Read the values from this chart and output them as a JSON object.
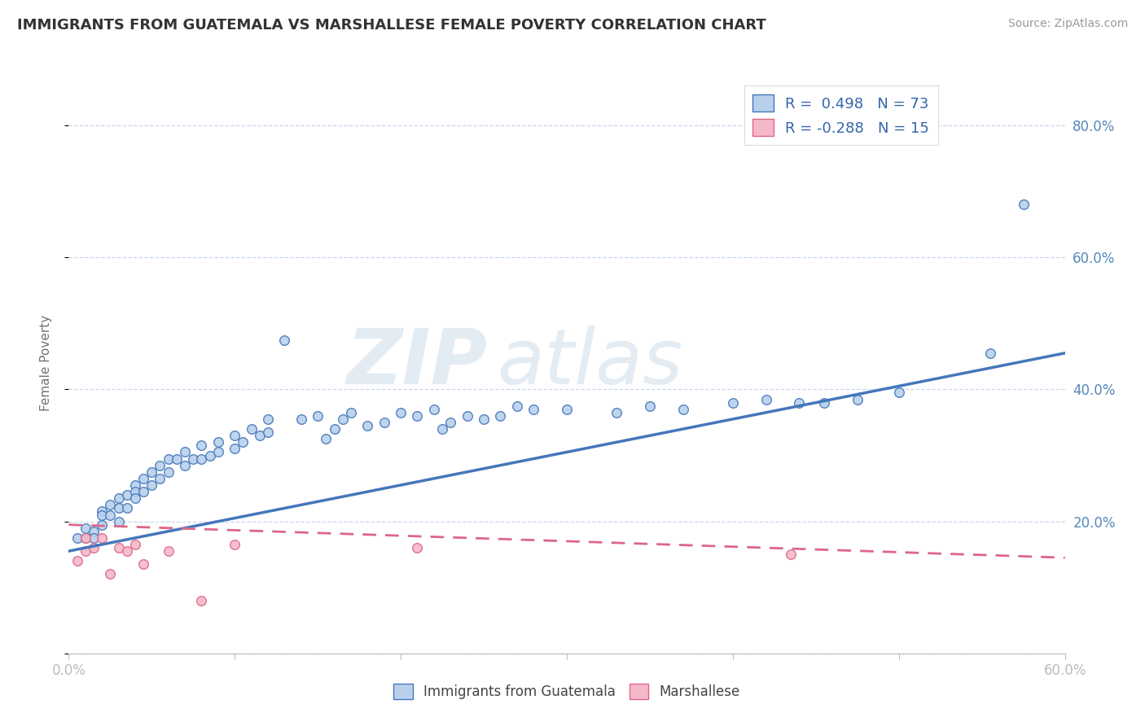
{
  "title": "IMMIGRANTS FROM GUATEMALA VS MARSHALLESE FEMALE POVERTY CORRELATION CHART",
  "source": "Source: ZipAtlas.com",
  "ylabel": "Female Poverty",
  "xlim": [
    0.0,
    0.6
  ],
  "ylim": [
    0.0,
    0.88
  ],
  "legend1_label": "R =  0.498   N = 73",
  "legend2_label": "R = -0.288   N = 15",
  "blue_color": "#b8d0eb",
  "pink_color": "#f5b8c8",
  "blue_line_color": "#4477bb",
  "pink_line_color": "#dd6688",
  "watermark_zip": "ZIP",
  "watermark_atlas": "atlas",
  "blue_trend_x": [
    0.0,
    0.6
  ],
  "blue_trend_y": [
    0.155,
    0.455
  ],
  "pink_trend_x": [
    0.0,
    0.6
  ],
  "pink_trend_y": [
    0.195,
    0.145
  ],
  "background_color": "#ffffff",
  "grid_color": "#c8d8ee",
  "title_color": "#333333",
  "tick_color": "#5588bb",
  "blue_scatter_x": [
    0.005,
    0.01,
    0.01,
    0.015,
    0.015,
    0.02,
    0.02,
    0.02,
    0.025,
    0.025,
    0.03,
    0.03,
    0.03,
    0.035,
    0.035,
    0.04,
    0.04,
    0.04,
    0.045,
    0.045,
    0.05,
    0.05,
    0.055,
    0.055,
    0.06,
    0.06,
    0.065,
    0.07,
    0.07,
    0.075,
    0.08,
    0.08,
    0.085,
    0.09,
    0.09,
    0.1,
    0.1,
    0.105,
    0.11,
    0.115,
    0.12,
    0.12,
    0.13,
    0.14,
    0.15,
    0.155,
    0.16,
    0.165,
    0.17,
    0.18,
    0.19,
    0.2,
    0.21,
    0.22,
    0.225,
    0.23,
    0.24,
    0.25,
    0.26,
    0.27,
    0.28,
    0.3,
    0.33,
    0.35,
    0.37,
    0.4,
    0.42,
    0.44,
    0.455,
    0.475,
    0.5,
    0.555,
    0.575
  ],
  "blue_scatter_y": [
    0.175,
    0.19,
    0.175,
    0.185,
    0.175,
    0.215,
    0.21,
    0.195,
    0.225,
    0.21,
    0.235,
    0.22,
    0.2,
    0.24,
    0.22,
    0.255,
    0.245,
    0.235,
    0.265,
    0.245,
    0.275,
    0.255,
    0.285,
    0.265,
    0.295,
    0.275,
    0.295,
    0.305,
    0.285,
    0.295,
    0.315,
    0.295,
    0.3,
    0.32,
    0.305,
    0.33,
    0.31,
    0.32,
    0.34,
    0.33,
    0.355,
    0.335,
    0.475,
    0.355,
    0.36,
    0.325,
    0.34,
    0.355,
    0.365,
    0.345,
    0.35,
    0.365,
    0.36,
    0.37,
    0.34,
    0.35,
    0.36,
    0.355,
    0.36,
    0.375,
    0.37,
    0.37,
    0.365,
    0.375,
    0.37,
    0.38,
    0.385,
    0.38,
    0.38,
    0.385,
    0.395,
    0.455,
    0.68
  ],
  "pink_scatter_x": [
    0.005,
    0.01,
    0.01,
    0.015,
    0.02,
    0.025,
    0.03,
    0.035,
    0.04,
    0.045,
    0.06,
    0.08,
    0.1,
    0.21,
    0.435
  ],
  "pink_scatter_y": [
    0.14,
    0.175,
    0.155,
    0.16,
    0.175,
    0.12,
    0.16,
    0.155,
    0.165,
    0.135,
    0.155,
    0.08,
    0.165,
    0.16,
    0.15
  ]
}
